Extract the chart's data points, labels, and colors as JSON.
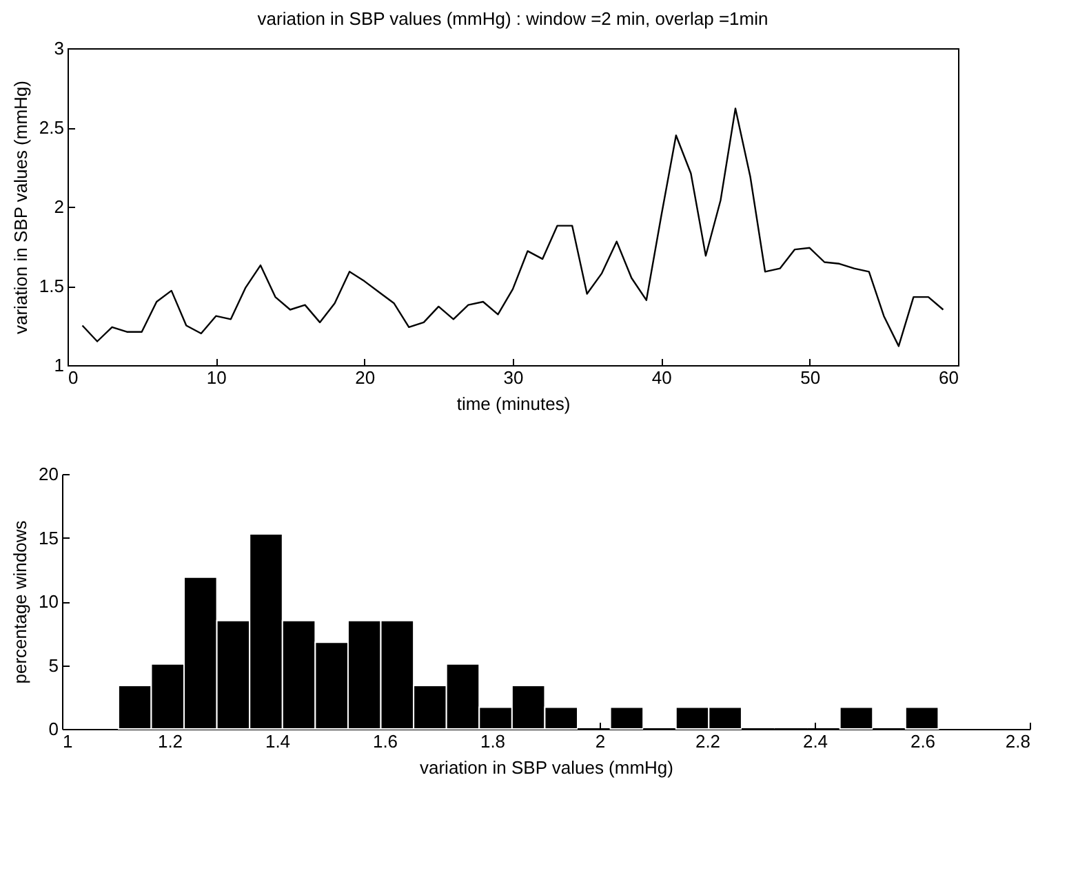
{
  "chart_data": [
    {
      "type": "line",
      "title": "variation in SBP values (mmHg)   : window =2 min, overlap =1min",
      "xlabel": "time (minutes)",
      "ylabel": "variation in SBP values (mmHg)",
      "x": [
        1,
        2,
        3,
        4,
        5,
        6,
        7,
        8,
        9,
        10,
        11,
        12,
        13,
        14,
        15,
        16,
        17,
        18,
        19,
        20,
        21,
        22,
        23,
        24,
        25,
        26,
        27,
        28,
        29,
        30,
        31,
        32,
        33,
        34,
        35,
        36,
        37,
        38,
        39,
        40,
        41,
        42,
        43,
        44,
        45,
        46,
        47,
        48,
        49,
        50,
        51,
        52,
        53,
        54,
        55,
        56,
        57,
        58,
        59
      ],
      "series": [
        {
          "color": "#000000",
          "values": [
            1.25,
            1.15,
            1.24,
            1.21,
            1.21,
            1.4,
            1.47,
            1.25,
            1.2,
            1.31,
            1.29,
            1.49,
            1.63,
            1.43,
            1.35,
            1.38,
            1.27,
            1.39,
            1.59,
            1.53,
            1.46,
            1.39,
            1.24,
            1.27,
            1.37,
            1.29,
            1.38,
            1.4,
            1.32,
            1.48,
            1.72,
            1.67,
            1.88,
            1.88,
            1.45,
            1.58,
            1.78,
            1.55,
            1.41,
            1.94,
            2.45,
            2.21,
            1.69,
            2.04,
            2.62,
            2.19,
            1.59,
            1.61,
            1.73,
            1.74,
            1.65,
            1.64,
            1.61,
            1.59,
            1.31,
            1.12,
            1.43,
            1.43,
            1.35
          ]
        }
      ],
      "xlim": [
        0,
        60
      ],
      "xticks": [
        0,
        10,
        20,
        30,
        40,
        50,
        60
      ],
      "ylim": [
        1,
        3
      ],
      "yticks": [
        1,
        1.5,
        2,
        2.5,
        3
      ],
      "grid": false
    },
    {
      "type": "histogram",
      "xlabel": "variation in SBP values (mmHg)",
      "ylabel": "percentage windows",
      "color": "#000000",
      "bins": [
        1.105,
        1.166,
        1.227,
        1.288,
        1.349,
        1.41,
        1.471,
        1.532,
        1.593,
        1.654,
        1.715,
        1.776,
        1.837,
        1.898,
        1.959,
        2.02,
        2.081,
        2.142,
        2.203,
        2.264,
        2.325,
        2.386,
        2.447,
        2.508,
        2.569,
        2.63
      ],
      "values": [
        3.4,
        5.1,
        11.9,
        8.5,
        15.3,
        8.5,
        6.8,
        8.5,
        8.5,
        3.4,
        5.1,
        1.7,
        3.4,
        1.7,
        0,
        1.7,
        0,
        1.7,
        1.7,
        0,
        0,
        0,
        1.7,
        0,
        1.7
      ],
      "xlim": [
        1,
        2.8
      ],
      "xticks": [
        1,
        1.2,
        1.4,
        1.6,
        1.8,
        2,
        2.2,
        2.4,
        2.6,
        2.8
      ],
      "ylim": [
        0,
        20
      ],
      "yticks": [
        0,
        5,
        10,
        15,
        20
      ],
      "grid": false
    }
  ]
}
